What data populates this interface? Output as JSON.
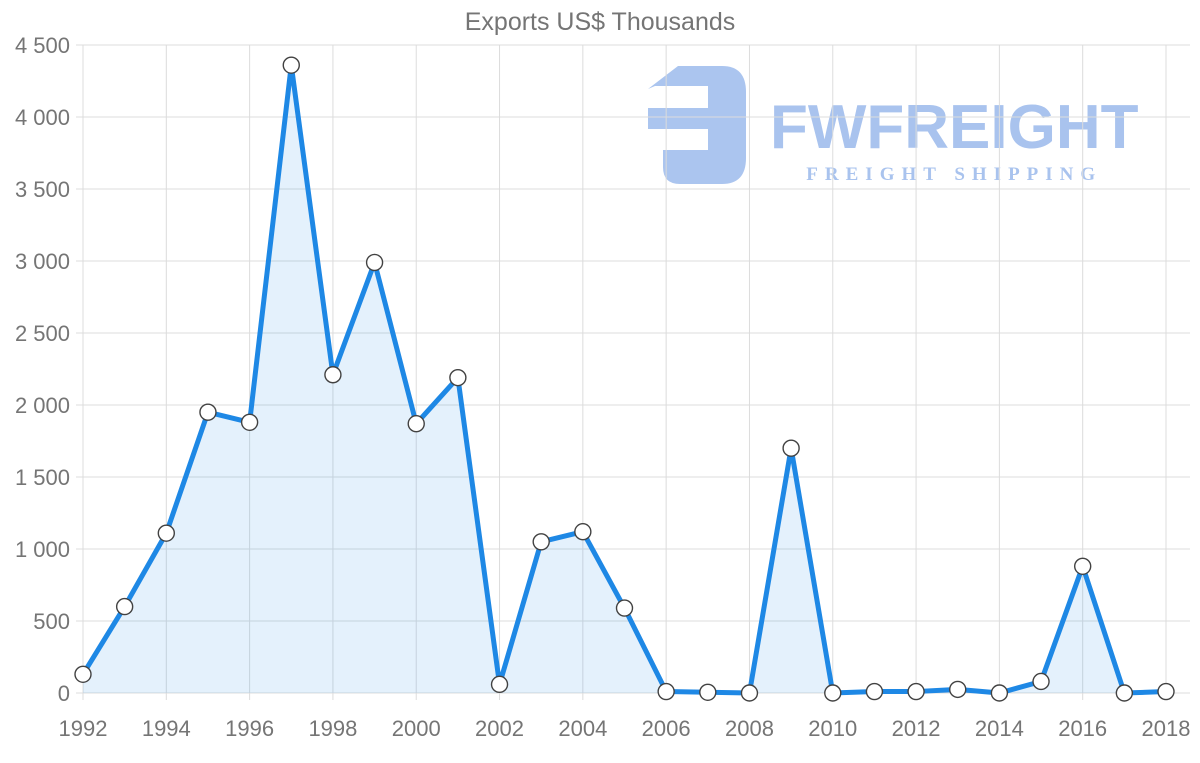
{
  "page": {
    "background": "#ffffff"
  },
  "watermark": {
    "brand": "FWFREIGHT",
    "tagline": "FREIGHT SHIPPING",
    "color": "#a9c3ee"
  },
  "chart_data": {
    "type": "area",
    "title": "Exports US$ Thousands",
    "xlabel": "",
    "ylabel": "",
    "x": [
      1992,
      1993,
      1994,
      1995,
      1996,
      1997,
      1998,
      1999,
      2000,
      2001,
      2002,
      2003,
      2004,
      2005,
      2006,
      2007,
      2008,
      2009,
      2010,
      2011,
      2012,
      2013,
      2014,
      2015,
      2016,
      2017,
      2018
    ],
    "series": [
      {
        "name": "Exports US$ Thousands",
        "values": [
          130,
          600,
          1110,
          1950,
          1880,
          4360,
          2210,
          2990,
          1870,
          2190,
          60,
          1050,
          1120,
          590,
          10,
          5,
          0,
          1700,
          0,
          10,
          10,
          25,
          0,
          80,
          880,
          0,
          10
        ]
      }
    ],
    "ylim": [
      0,
      4500
    ],
    "y_tick_step": 500,
    "y_tick_labels": [
      "0",
      "500",
      "1 000",
      "1 500",
      "2 000",
      "2 500",
      "3 000",
      "3 500",
      "4 000",
      "4 500"
    ],
    "x_tick_labels": [
      1992,
      1994,
      1996,
      1998,
      2000,
      2002,
      2004,
      2006,
      2008,
      2010,
      2012,
      2014,
      2016,
      2018
    ],
    "grid": true,
    "legend": "none",
    "colors": {
      "line": "#1e88e5",
      "fill": "#1e88e5",
      "fill_opacity": 0.12,
      "marker_fill": "#ffffff",
      "marker_stroke": "#424242",
      "grid": "#dcdcdc",
      "text": "#757575"
    }
  }
}
